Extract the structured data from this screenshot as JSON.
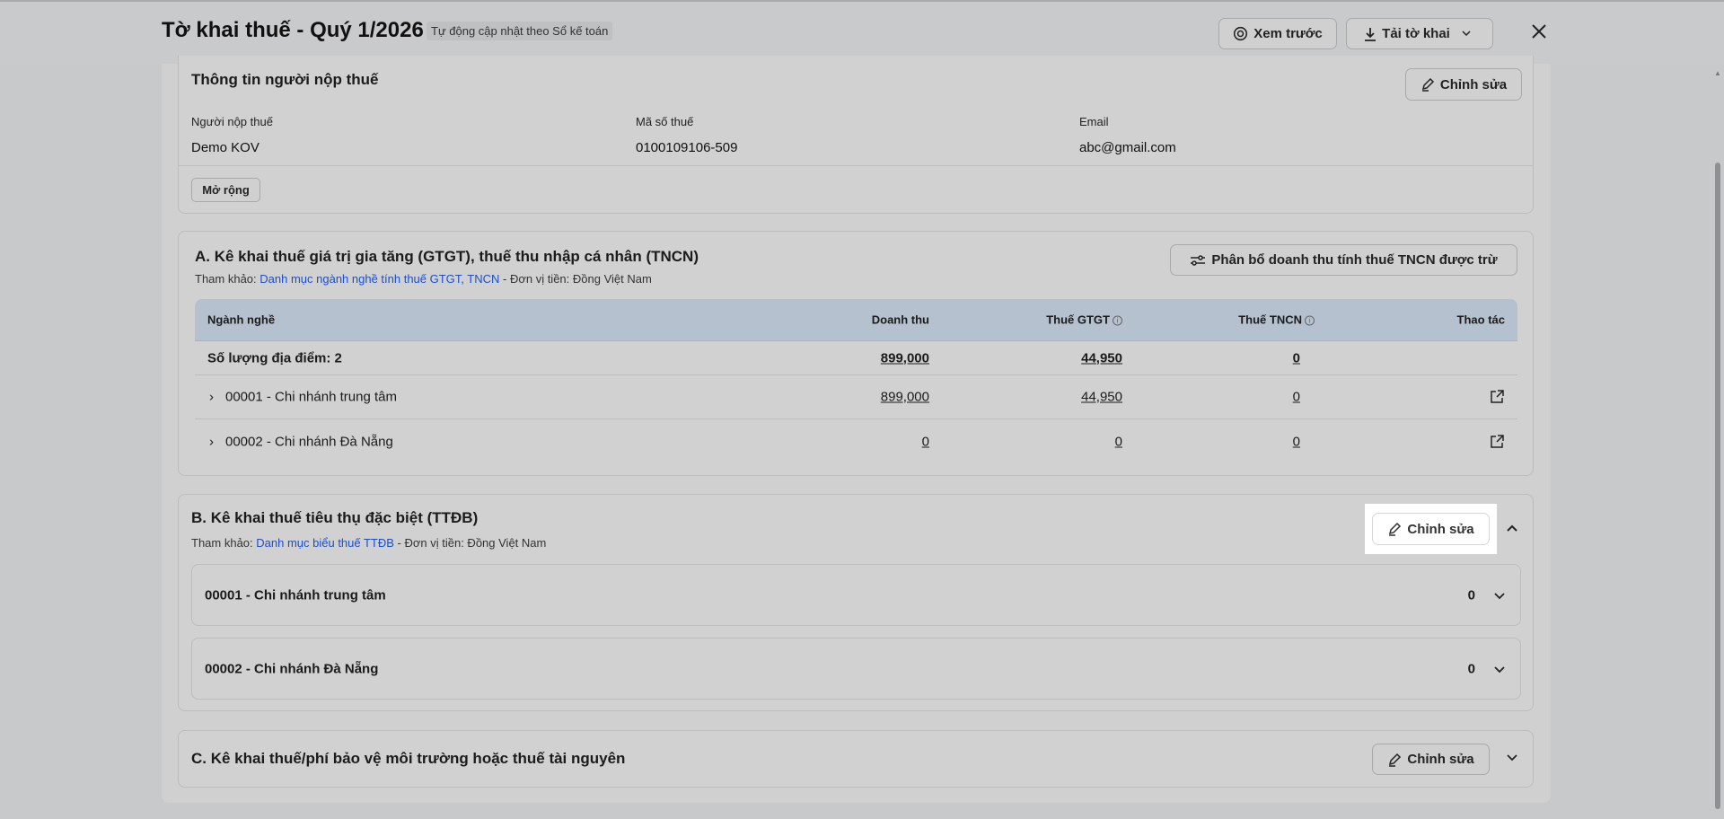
{
  "header": {
    "title": "Tờ khai thuế - Quý 1/2026",
    "badge": "Tự động cập nhật theo Sổ kế toán",
    "preview_label": "Xem trước",
    "download_label": "Tải tờ khai"
  },
  "taxpayer": {
    "title": "Thông tin người nộp thuế",
    "edit_label": "Chỉnh sửa",
    "fields": [
      {
        "label": "Người nộp thuế",
        "value": "Demo KOV"
      },
      {
        "label": "Mã số thuế",
        "value": "0100109106-509"
      },
      {
        "label": "Email",
        "value": "abc@gmail.com"
      }
    ],
    "expand_label": "Mở rộng"
  },
  "section_a": {
    "title": "A. Kê khai thuế giá trị gia tăng (GTGT), thuế thu nhập cá nhân (TNCN)",
    "ref_prefix": "Tham khảo: ",
    "ref_link": "Danh mục ngành nghề tính thuế GTGT, TNCN",
    "ref_suffix": " - Đơn vị tiền: Đồng Việt Nam",
    "allocate_label": "Phân bổ doanh thu tính thuế TNCN được trừ",
    "columns": [
      "Ngành nghề",
      "Doanh thu",
      "Thuế GTGT",
      "Thuế TNCN",
      "Thao tác"
    ],
    "summary": {
      "label": "Số lượng địa điểm: 2",
      "revenue": "899,000",
      "vat": "44,950",
      "pit": "0"
    },
    "rows": [
      {
        "name": "00001 - Chi nhánh trung tâm",
        "revenue": "899,000",
        "vat": "44,950",
        "pit": "0"
      },
      {
        "name": "00002 - Chi nhánh Đà Nẵng",
        "revenue": "0",
        "vat": "0",
        "pit": "0"
      }
    ]
  },
  "section_b": {
    "title": "B. Kê khai thuế tiêu thụ đặc biệt (TTĐB)",
    "ref_prefix": "Tham khảo: ",
    "ref_link": "Danh mục biểu thuế TTĐB",
    "ref_suffix": " - Đơn vị tiền: Đồng Việt Nam",
    "edit_label": "Chỉnh sửa",
    "branches": [
      {
        "name": "00001 - Chi nhánh trung tâm",
        "value": "0"
      },
      {
        "name": "00002 - Chi nhánh Đà Nẵng",
        "value": "0"
      }
    ]
  },
  "section_c": {
    "title": "C. Kê khai thuế/phí bảo vệ môi trường hoặc thuế tài nguyên",
    "edit_label": "Chỉnh sửa"
  },
  "colors": {
    "link": "#1d4fc4",
    "table_header": "#b5c1cf",
    "highlight": "#ffffff"
  }
}
